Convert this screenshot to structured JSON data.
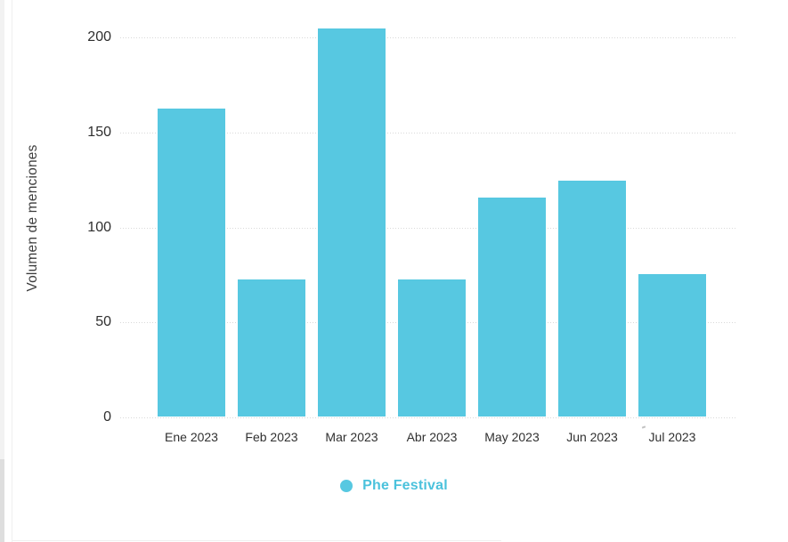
{
  "chart_data": {
    "type": "bar",
    "title": "",
    "ylabel": "Volumen de menciones",
    "xlabel": "",
    "categories": [
      "Ene 2023",
      "Feb 2023",
      "Mar 2023",
      "Abr 2023",
      "May 2023",
      "Jun 2023",
      "Jul 2023"
    ],
    "values": [
      162,
      72,
      204,
      72,
      115,
      124,
      75
    ],
    "series_name": "Phe Festival",
    "yticks": [
      0,
      50,
      100,
      150,
      200
    ],
    "ylim": [
      0,
      215
    ],
    "grid": "horizontal-dotted",
    "legend_position": "bottom-center",
    "bar_color": "#57c8e1",
    "grid_color": "#d9d9d9",
    "tick_text_color": "#2f2f2f"
  },
  "legend": {
    "items": [
      {
        "label": "Phe Festival",
        "marker": "circle",
        "marker_color": "#57c8e1",
        "label_color": "#4bc2dc"
      }
    ]
  }
}
